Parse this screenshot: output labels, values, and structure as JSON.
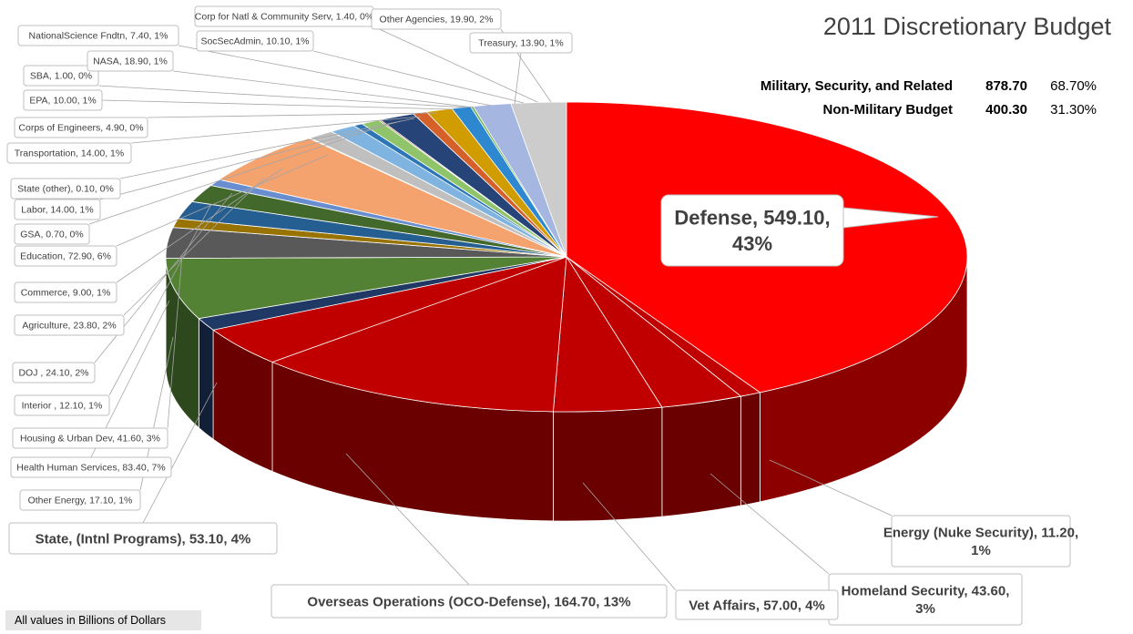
{
  "title": "2011 Discretionary Budget",
  "summary": [
    {
      "label": "Military, Security, and Related",
      "amount": "878.70",
      "percent": "68.70%"
    },
    {
      "label": "Non-Military Budget",
      "amount": "400.30",
      "percent": "31.30%"
    }
  ],
  "footnote": "All values in Billions of Dollars",
  "chart_data": {
    "type": "pie",
    "title": "2011 Discretionary Budget",
    "units": "Billions of Dollars",
    "slices": [
      {
        "label": "Defense, 549.10, 43%",
        "value": 549.1,
        "color": "#ff0000"
      },
      {
        "label": "Energy (Nuke Security), 11.20, 1%",
        "value": 11.2,
        "color": "#c00000"
      },
      {
        "label": "Homeland Security, 43.60, 3%",
        "value": 43.6,
        "color": "#c00000"
      },
      {
        "label": "Vet Affairs, 57.00, 4%",
        "value": 57.0,
        "color": "#c00000"
      },
      {
        "label": "Overseas Operations (OCO-Defense), 164.70, 13%",
        "value": 164.7,
        "color": "#c00000"
      },
      {
        "label": "State, (Intnl Programs), 53.10, 4%",
        "value": 53.1,
        "color": "#c00000"
      },
      {
        "label": "Other Energy, 17.10, 1%",
        "value": 17.1,
        "color": "#1f3864"
      },
      {
        "label": "Health Human Services, 83.40, 7%",
        "value": 83.4,
        "color": "#548235"
      },
      {
        "label": "Housing & Urban Dev, 41.60, 3%",
        "value": 41.6,
        "color": "#595959"
      },
      {
        "label": "Interior , 12.10, 1%",
        "value": 12.1,
        "color": "#997300"
      },
      {
        "label": "DOJ , 24.10, 2%",
        "value": 24.1,
        "color": "#255e91"
      },
      {
        "label": "Agriculture, 23.80, 2%",
        "value": 23.8,
        "color": "#43682b"
      },
      {
        "label": "Commerce, 9.00, 1%",
        "value": 9.0,
        "color": "#698ed0"
      },
      {
        "label": "Education, 72.90, 6%",
        "value": 72.9,
        "color": "#f4a26e"
      },
      {
        "label": "GSA, 0.70, 0%",
        "value": 0.7,
        "color": "#ed7d31"
      },
      {
        "label": "Labor, 14.00, 1%",
        "value": 14.0,
        "color": "#bfbfbf"
      },
      {
        "label": "State (other), 0.10, 0%",
        "value": 0.1,
        "color": "#ffc000"
      },
      {
        "label": "Transportation, 14.00, 1%",
        "value": 14.0,
        "color": "#7fb3e0"
      },
      {
        "label": "Corps of Engineers, 4.90, 0%",
        "value": 4.9,
        "color": "#2e75b6"
      },
      {
        "label": "EPA, 10.00, 1%",
        "value": 10.0,
        "color": "#8fc46a"
      },
      {
        "label": "SBA, 1.00, 0%",
        "value": 1.0,
        "color": "#9e480e"
      },
      {
        "label": "NASA, 18.90, 1%",
        "value": 18.9,
        "color": "#264478"
      },
      {
        "label": "NationalScience Fndtn, 7.40, 1%",
        "value": 7.4,
        "color": "#d5602a"
      },
      {
        "label": "Treasury, 13.90, 1%",
        "value": 13.9,
        "color": "#d09c00"
      },
      {
        "label": "SocSecAdmin, 10.10, 1%",
        "value": 10.1,
        "color": "#2e88d0"
      },
      {
        "label": "Corp for Natl & Community Serv, 1.40, 0%",
        "value": 1.4,
        "color": "#70ad47"
      },
      {
        "label": "Other Agencies, 19.90, 2%",
        "value": 19.9,
        "color": "#a5b6e0"
      },
      {
        "label": "",
        "value": 29.0,
        "color": "#cccccc"
      }
    ]
  }
}
